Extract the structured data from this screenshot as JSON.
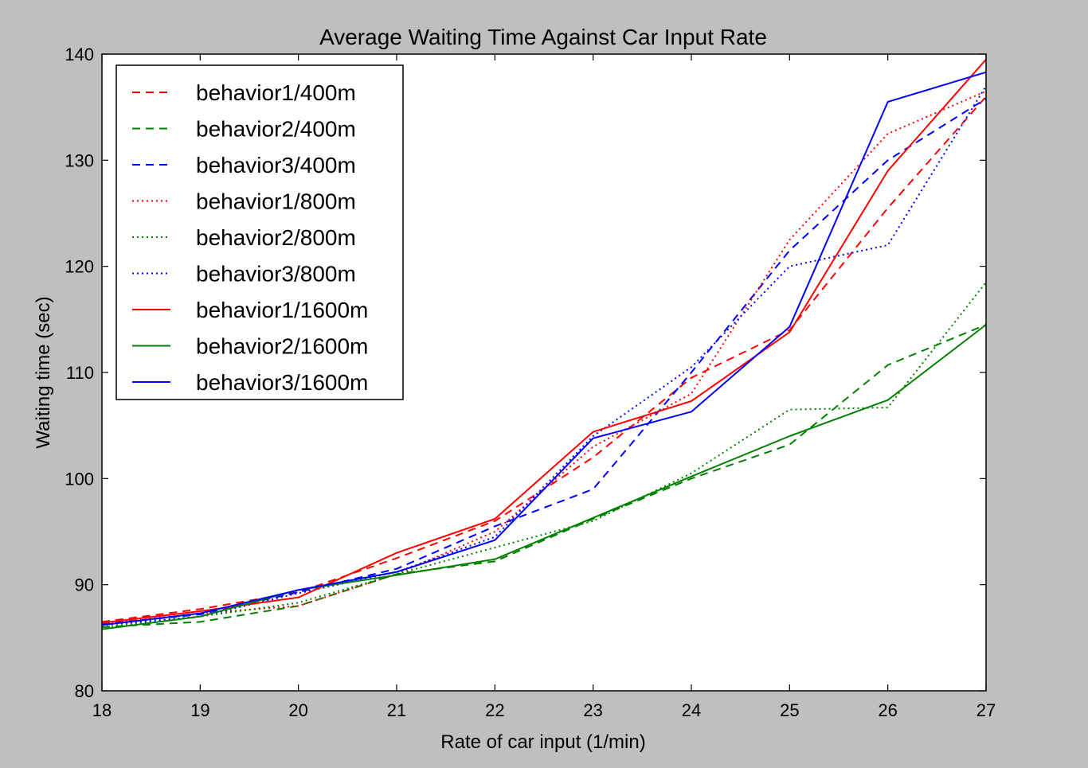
{
  "chart_data": {
    "type": "line",
    "title": "Average Waiting Time Against Car Input Rate",
    "xlabel": "Rate of car input (1/min)",
    "ylabel": "Waiting time (sec)",
    "xlim": [
      18,
      27
    ],
    "ylim": [
      80,
      140
    ],
    "x_ticks": [
      "18",
      "19",
      "20",
      "21",
      "22",
      "23",
      "24",
      "25",
      "26",
      "27"
    ],
    "y_ticks": [
      "80",
      "90",
      "100",
      "110",
      "120",
      "130",
      "140"
    ],
    "x": [
      18,
      19,
      20,
      21,
      22,
      23,
      24,
      25,
      26,
      27
    ],
    "grid": false,
    "legend_position": "upper-left",
    "series": [
      {
        "name": "behavior1/400m",
        "color": "#ff0000",
        "style": "dashed",
        "values": [
          86.5,
          87.7,
          89.3,
          92.5,
          96.0,
          102.0,
          109.5,
          114.0,
          125.5,
          136.0
        ]
      },
      {
        "name": "behavior2/400m",
        "color": "#008000",
        "style": "dashed",
        "values": [
          86.0,
          86.5,
          88.0,
          91.0,
          92.2,
          96.2,
          100.0,
          103.2,
          110.7,
          114.5
        ]
      },
      {
        "name": "behavior3/400m",
        "color": "#0000ff",
        "style": "dashed",
        "values": [
          86.3,
          87.2,
          89.3,
          91.5,
          95.5,
          99.0,
          110.0,
          121.5,
          130.0,
          135.8
        ]
      },
      {
        "name": "behavior1/800m",
        "color": "#ff0000",
        "style": "dotted",
        "values": [
          86.3,
          87.3,
          88.0,
          91.0,
          95.0,
          103.0,
          108.0,
          122.5,
          132.5,
          136.5
        ]
      },
      {
        "name": "behavior2/800m",
        "color": "#008000",
        "style": "dotted",
        "values": [
          86.0,
          87.0,
          88.3,
          91.0,
          93.5,
          96.0,
          100.5,
          106.5,
          106.7,
          118.5
        ]
      },
      {
        "name": "behavior3/800m",
        "color": "#0000ff",
        "style": "dotted",
        "values": [
          86.2,
          87.0,
          89.2,
          91.2,
          94.5,
          104.0,
          110.5,
          120.0,
          122.0,
          137.0
        ]
      },
      {
        "name": "behavior1/1600m",
        "color": "#ff0000",
        "style": "solid",
        "values": [
          86.4,
          87.5,
          88.8,
          93.0,
          96.2,
          104.4,
          107.3,
          113.8,
          129.0,
          139.5
        ]
      },
      {
        "name": "behavior2/1600m",
        "color": "#008000",
        "style": "solid",
        "values": [
          85.8,
          87.0,
          89.5,
          90.9,
          92.4,
          96.3,
          100.2,
          104.0,
          107.4,
          114.5
        ]
      },
      {
        "name": "behavior3/1600m",
        "color": "#0000ff",
        "style": "solid",
        "values": [
          86.2,
          87.3,
          89.5,
          91.2,
          94.2,
          103.8,
          106.3,
          114.3,
          135.5,
          138.3
        ]
      }
    ]
  }
}
